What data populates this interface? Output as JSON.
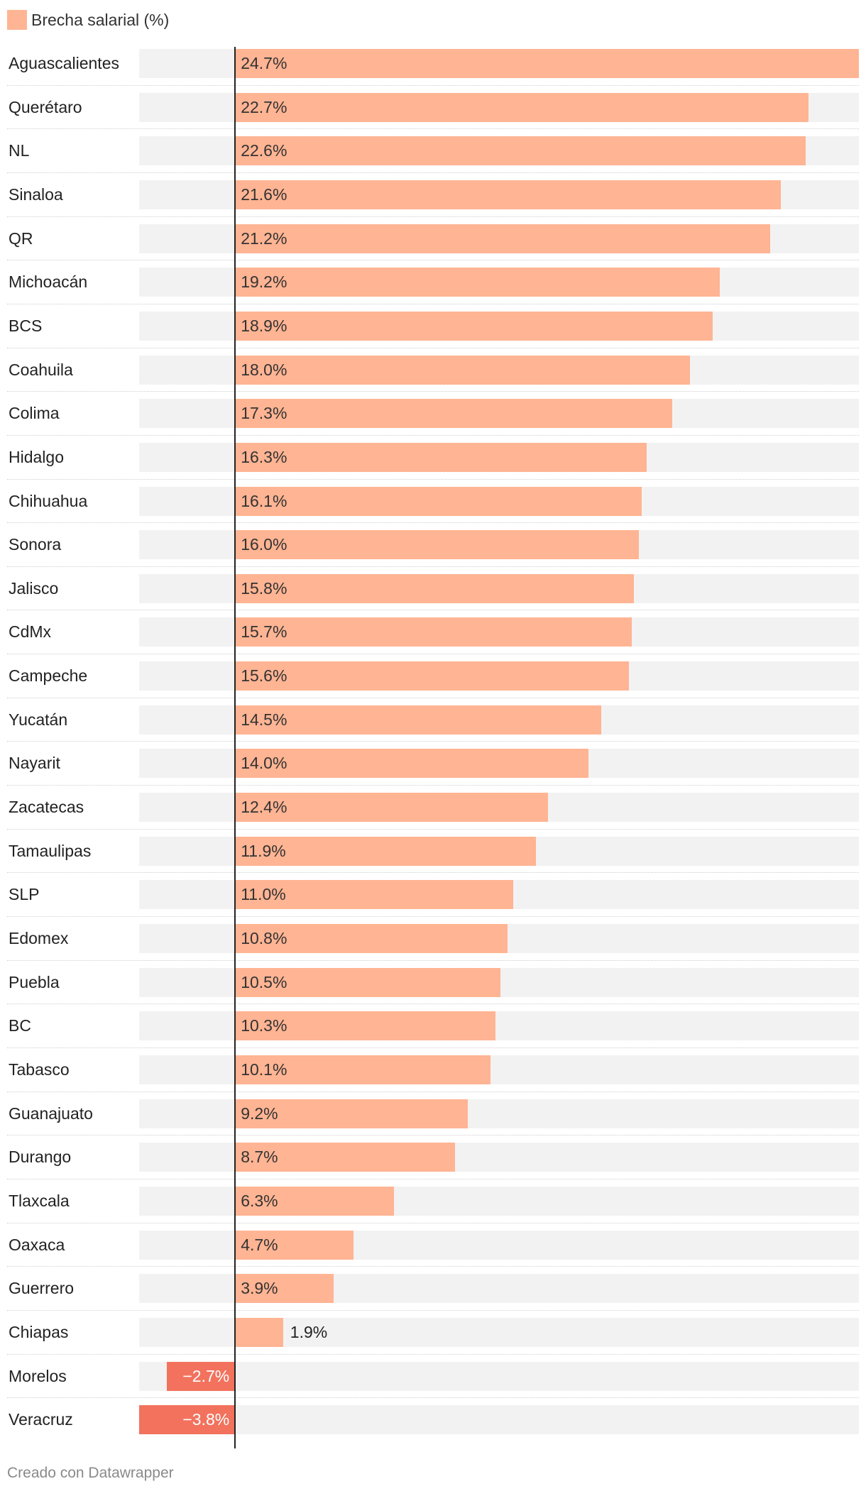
{
  "chart_data": {
    "type": "bar",
    "orientation": "horizontal",
    "series": [
      {
        "name": "Brecha salarial (%)",
        "color": "#ffb493",
        "negative_color": "#f2725e"
      }
    ],
    "categories": [
      "Aguascalientes",
      "Querétaro",
      "NL",
      "Sinaloa",
      "QR",
      "Michoacán",
      "BCS",
      "Coahuila",
      "Colima",
      "Hidalgo",
      "Chihuahua",
      "Sonora",
      "Jalisco",
      "CdMx",
      "Campeche",
      "Yucatán",
      "Nayarit",
      "Zacatecas",
      "Tamaulipas",
      "SLP",
      "Edomex",
      "Puebla",
      "BC",
      "Tabasco",
      "Guanajuato",
      "Durango",
      "Tlaxcala",
      "Oaxaca",
      "Guerrero",
      "Chiapas",
      "Morelos",
      "Veracruz"
    ],
    "values": [
      24.7,
      22.7,
      22.6,
      21.6,
      21.2,
      19.2,
      18.9,
      18.0,
      17.3,
      16.3,
      16.1,
      16.0,
      15.8,
      15.7,
      15.6,
      14.5,
      14.0,
      12.4,
      11.9,
      11.0,
      10.8,
      10.5,
      10.3,
      10.1,
      9.2,
      8.7,
      6.3,
      4.7,
      3.9,
      1.9,
      -2.7,
      -3.8
    ],
    "value_labels": [
      "24.7%",
      "22.7%",
      "22.6%",
      "21.6%",
      "21.2%",
      "19.2%",
      "18.9%",
      "18.0%",
      "17.3%",
      "16.3%",
      "16.1%",
      "16.0%",
      "15.8%",
      "15.7%",
      "15.6%",
      "14.5%",
      "14.0%",
      "12.4%",
      "11.9%",
      "11.0%",
      "10.8%",
      "10.5%",
      "10.3%",
      "10.1%",
      "9.2%",
      "8.7%",
      "6.3%",
      "4.7%",
      "3.9%",
      "1.9%",
      "−2.7%",
      "−3.8%"
    ],
    "xlim": [
      -3.8,
      24.7
    ],
    "legend": "top-left",
    "title": "",
    "xlabel": "",
    "ylabel": ""
  },
  "legend": {
    "label": "Brecha salarial (%)"
  },
  "footer": {
    "credit": "Creado con Datawrapper"
  }
}
